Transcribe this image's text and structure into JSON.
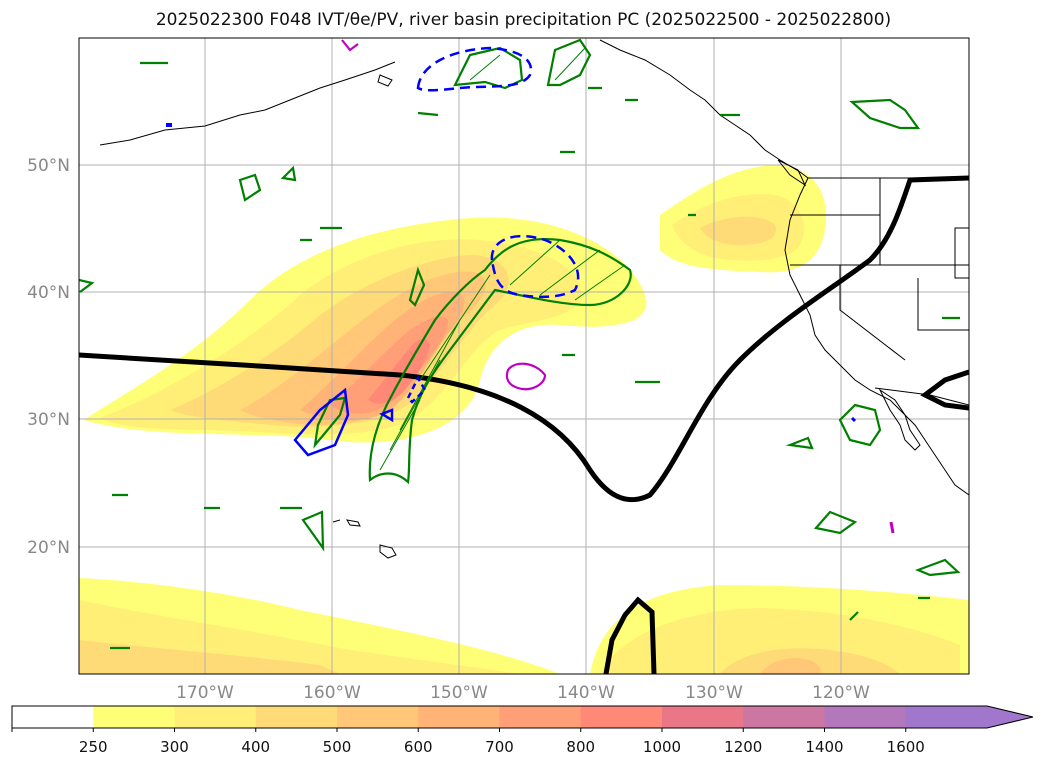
{
  "title": "2025022300 F048 IVT/θe/PV, river basin precipitation PC (2025022500 - 2025022800)",
  "lat_labels": [
    "50°N",
    "40°N",
    "30°N",
    "20°N"
  ],
  "lon_labels": [
    "170°W",
    "160°W",
    "150°W",
    "140°W",
    "130°W",
    "120°W"
  ],
  "colorbar": {
    "ticks": [
      "250",
      "300",
      "400",
      "500",
      "600",
      "700",
      "800",
      "1000",
      "1200",
      "1400",
      "1600"
    ],
    "colors": [
      "#ffffff",
      "#ffff77",
      "#ffef77",
      "#ffdb77",
      "#ffc777",
      "#ffb377",
      "#ff9f77",
      "#ff8877",
      "#e97788",
      "#cc77a2",
      "#b377bb",
      "#a077cc"
    ],
    "extend": "max"
  },
  "colors": {
    "coast": "#000000",
    "contour_thick": "#000000",
    "pv_green": "#008000",
    "blue_dashed": "#0000ff",
    "magenta": "#c000c0",
    "grid": "#b0b0b0",
    "tick_label": "#888888"
  }
}
